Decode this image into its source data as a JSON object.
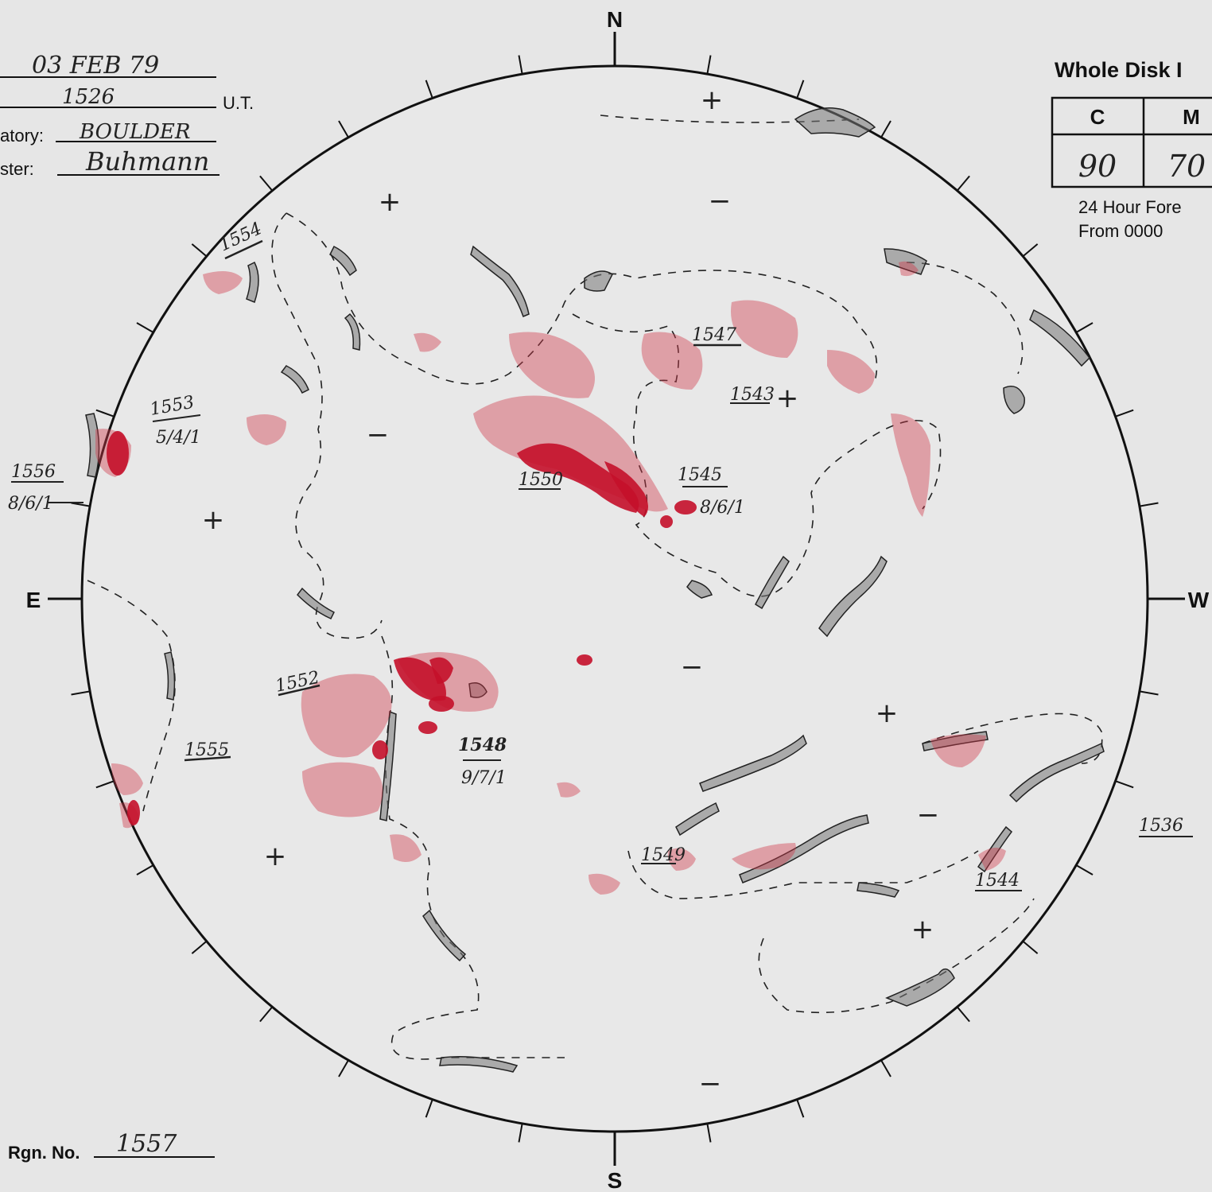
{
  "header": {
    "date": "03 FEB 79",
    "time": "1526",
    "time_unit": "U.T.",
    "observatory_label": "atory:",
    "observatory": "BOULDER",
    "forecaster_label": "ster:",
    "forecaster": "Buhmann"
  },
  "forecast_box": {
    "title": "Whole Disk I",
    "columns": [
      "C",
      "M"
    ],
    "values": [
      "90",
      "70"
    ],
    "note_line1": "24 Hour Fore",
    "note_line2": "From 0000"
  },
  "compass": {
    "north": "N",
    "south": "S",
    "east": "E",
    "west": "W"
  },
  "footer": {
    "region_number_label": "Rgn. No.",
    "region_number": "1557"
  },
  "regions": {
    "r1554": "1554",
    "r1553": "1553",
    "r1553_class": "5/4/1",
    "r1556": "1556",
    "r1556_class": "8/6/1",
    "r1547": "1547",
    "r1543": "1543",
    "r1550": "1550",
    "r1545": "1545",
    "r1545_class": "8/6/1",
    "r1552": "1552",
    "r1555": "1555",
    "r1548": "1548",
    "r1548_class": "9/7/1",
    "r1549": "1549",
    "r1544": "1544",
    "r1536": "1536"
  },
  "colors": {
    "background": "#e6e6e6",
    "ink": "#111111",
    "plage": "#cf3a4a",
    "spot": "#c4102a"
  }
}
